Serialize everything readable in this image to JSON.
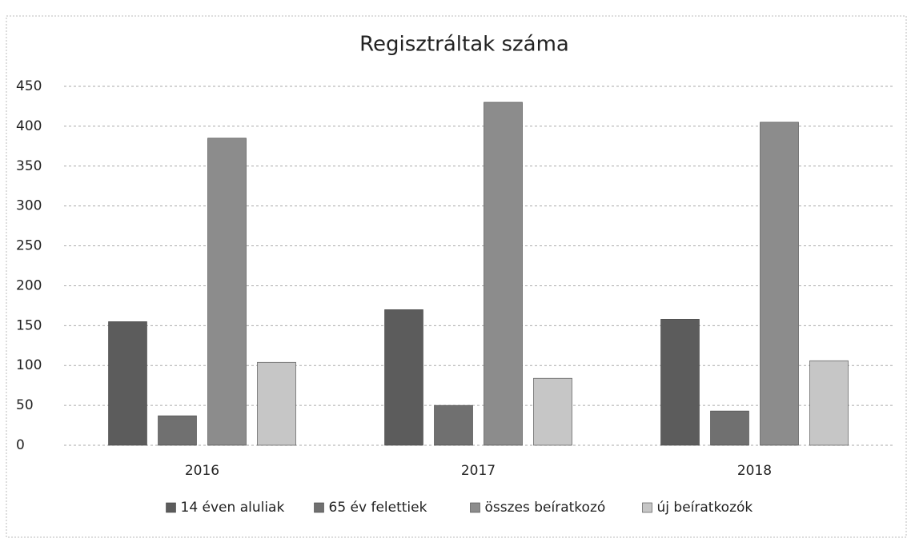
{
  "chart_data": {
    "type": "bar",
    "title": "Regisztráltak száma",
    "categories": [
      "2016",
      "2017",
      "2018"
    ],
    "series": [
      {
        "name": "14 éven aluliak",
        "color": "#5c5c5c",
        "values": [
          155,
          170,
          158
        ]
      },
      {
        "name": "65 év felettiek",
        "color": "#707070",
        "values": [
          37,
          50,
          43
        ]
      },
      {
        "name": "összes beíratkozó",
        "color": "#8c8c8c",
        "values": [
          385,
          430,
          405
        ]
      },
      {
        "name": "új beíratkozók",
        "color": "#c6c6c6",
        "values": [
          104,
          84,
          106
        ]
      }
    ],
    "ylim": [
      0,
      450
    ],
    "yticks": [
      0,
      50,
      100,
      150,
      200,
      250,
      300,
      350,
      400,
      450
    ],
    "grid": true,
    "legend": "bottom"
  }
}
